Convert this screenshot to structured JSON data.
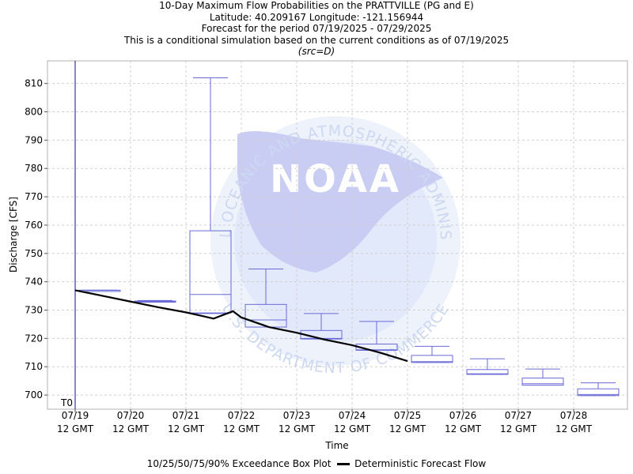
{
  "titles": {
    "line1": "10-Day Maximum Flow Probabilities on the PRATTVILLE (PG and E)",
    "line2": "Latitude: 40.209167 Longitude: -121.156944",
    "line3": "Forecast for the period 07/19/2025 - 07/29/2025",
    "line4": "This is a conditional simulation based on the current conditions as of 07/19/2025",
    "line5": "(src=D)"
  },
  "watermark": {
    "logo_text": "NOAA",
    "ring_text_top": "NATIONAL OCEANIC AND ATMOSPHERIC ADMINISTRATION",
    "ring_text_bottom": "U.S. DEPARTMENT OF COMMERCE"
  },
  "colors": {
    "box": "#6a6ad8",
    "deterministic": "#000000",
    "t0_line": "#3535b0",
    "grid": "#d0d0d0",
    "watermark_light": "#e4ecfa",
    "watermark_dark": "#c9cdf4"
  },
  "chart_data": {
    "type": "boxplot",
    "xlabel": "Time",
    "ylabel": "Discharge [CFS]",
    "ylim": [
      695,
      818
    ],
    "yticks": [
      700,
      710,
      720,
      730,
      740,
      750,
      760,
      770,
      780,
      790,
      800,
      810
    ],
    "xticks": [
      {
        "day": 0,
        "line1": "07/19",
        "line2": "12 GMT"
      },
      {
        "day": 1,
        "line1": "07/20",
        "line2": "12 GMT"
      },
      {
        "day": 2,
        "line1": "07/21",
        "line2": "12 GMT"
      },
      {
        "day": 3,
        "line1": "07/22",
        "line2": "12 GMT"
      },
      {
        "day": 4,
        "line1": "07/23",
        "line2": "12 GMT"
      },
      {
        "day": 5,
        "line1": "07/24",
        "line2": "12 GMT"
      },
      {
        "day": 6,
        "line1": "07/25",
        "line2": "12 GMT"
      },
      {
        "day": 7,
        "line1": "07/26",
        "line2": "12 GMT"
      },
      {
        "day": 8,
        "line1": "07/27",
        "line2": "12 GMT"
      },
      {
        "day": 9,
        "line1": "07/28",
        "line2": "12 GMT"
      }
    ],
    "xrange_days": [
      -0.2,
      10.2
    ],
    "t0_day": 0,
    "t0_label": "T0",
    "grid": true,
    "boxes": [
      {
        "day_start": 0,
        "day_end": 1,
        "p10": 737.0,
        "p25": 737.0,
        "p50": 737.0,
        "p75": 737.0,
        "p90": 737.0
      },
      {
        "day_start": 1,
        "day_end": 2,
        "p10": 732.8,
        "p25": 732.8,
        "p50": 733.0,
        "p75": 733.2,
        "p90": 733.4
      },
      {
        "day_start": 2,
        "day_end": 3,
        "p10": 728.8,
        "p25": 729.0,
        "p50": 735.5,
        "p75": 758.0,
        "p90": 812.0
      },
      {
        "day_start": 3,
        "day_end": 4,
        "p10": 724.0,
        "p25": 724.0,
        "p50": 726.5,
        "p75": 732.0,
        "p90": 744.5
      },
      {
        "day_start": 4,
        "day_end": 5,
        "p10": 719.8,
        "p25": 719.8,
        "p50": 720.0,
        "p75": 722.8,
        "p90": 728.8
      },
      {
        "day_start": 5,
        "day_end": 6,
        "p10": 715.8,
        "p25": 715.8,
        "p50": 716.0,
        "p75": 718.0,
        "p90": 726.0
      },
      {
        "day_start": 6,
        "day_end": 7,
        "p10": 711.5,
        "p25": 711.5,
        "p50": 711.8,
        "p75": 714.0,
        "p90": 717.2
      },
      {
        "day_start": 7,
        "day_end": 8,
        "p10": 707.3,
        "p25": 707.3,
        "p50": 707.5,
        "p75": 709.0,
        "p90": 712.8
      },
      {
        "day_start": 8,
        "day_end": 9,
        "p10": 703.5,
        "p25": 703.5,
        "p50": 704.0,
        "p75": 706.0,
        "p90": 709.2
      },
      {
        "day_start": 9,
        "day_end": 10,
        "p10": 699.8,
        "p25": 699.8,
        "p50": 700.2,
        "p75": 702.2,
        "p90": 704.3
      }
    ],
    "deterministic": {
      "x_days": [
        0,
        0.5,
        1,
        1.5,
        2,
        2.5,
        2.85,
        3,
        3.5,
        4,
        4.5,
        5,
        5.5,
        6
      ],
      "y": [
        737.0,
        735.0,
        733.0,
        731.0,
        729.2,
        727.0,
        729.6,
        727.4,
        724.0,
        722.0,
        719.6,
        717.6,
        715.0,
        712.0
      ]
    },
    "legend": {
      "box_label": "10/25/50/75/90% Exceedance Box Plot",
      "line_label": "Deterministic Forecast Flow"
    }
  }
}
